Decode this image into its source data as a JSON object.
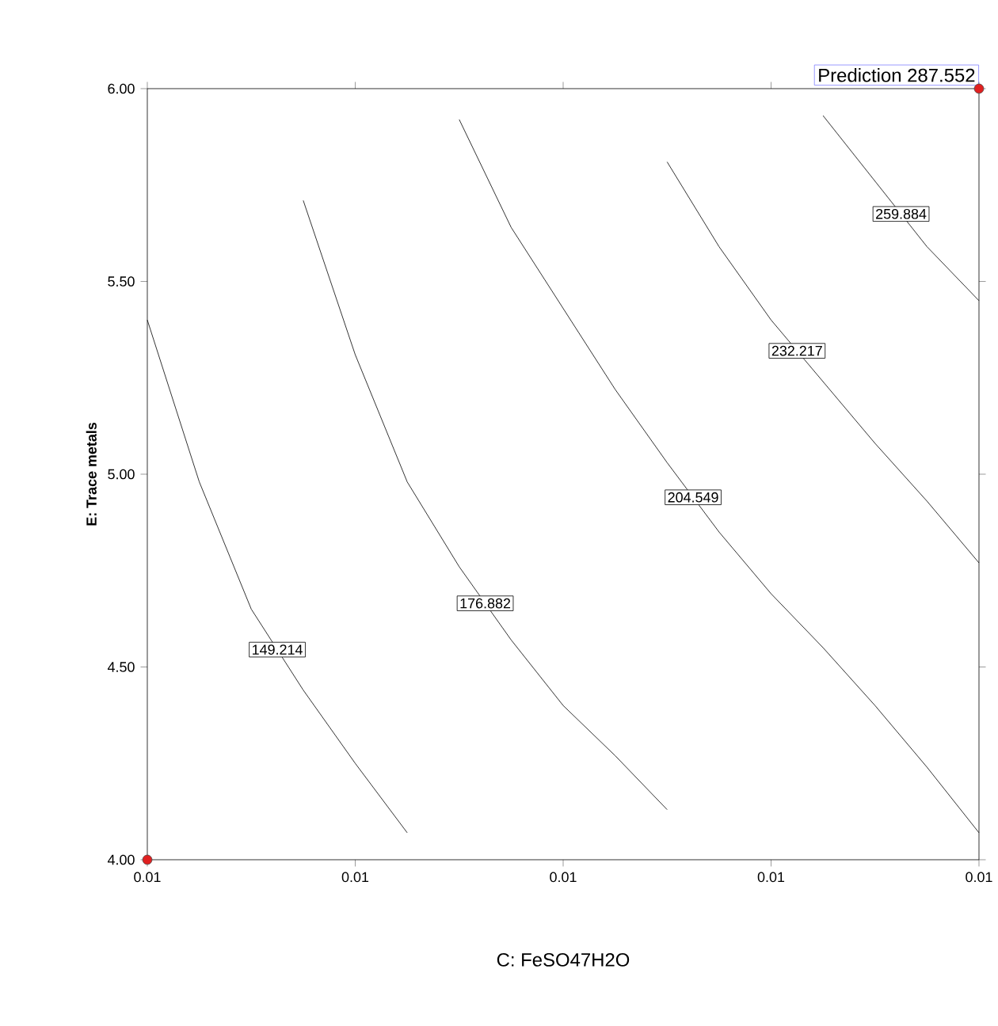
{
  "chart_data": {
    "type": "line",
    "xlabel": "C: FeSO47H2O",
    "ylabel": "E: Trace metals",
    "categories": [
      "0.01",
      null,
      null,
      null,
      "0.01",
      null,
      null,
      null,
      "0.01",
      null,
      null,
      null,
      "0.01",
      null,
      null,
      null,
      "0.01"
    ],
    "ylim": [
      4,
      6
    ],
    "yticks": [
      {
        "value": 4,
        "label": "4.00"
      },
      {
        "value": 4.5,
        "label": "4.50"
      },
      {
        "value": 5,
        "label": "5.00"
      },
      {
        "value": 5.5,
        "label": "5.50"
      },
      {
        "value": 6,
        "label": "6.00"
      }
    ],
    "series": [
      {
        "name": "149.214",
        "color": "#000000",
        "values": [
          5.4,
          4.98,
          4.65,
          4.44,
          4.25,
          4.07,
          null,
          null,
          null,
          null,
          null,
          null,
          null,
          null,
          null,
          null,
          null
        ]
      },
      {
        "name": "176.882",
        "color": "#000000",
        "values": [
          null,
          null,
          null,
          5.71,
          5.31,
          4.98,
          4.76,
          4.57,
          4.4,
          4.27,
          4.13,
          null,
          null,
          null,
          null,
          null,
          null
        ]
      },
      {
        "name": "204.549",
        "color": "#000000",
        "values": [
          null,
          null,
          null,
          null,
          null,
          null,
          5.92,
          5.64,
          5.43,
          5.22,
          5.03,
          4.85,
          4.69,
          4.55,
          4.4,
          4.24,
          4.07
        ]
      },
      {
        "name": "232.217",
        "color": "#000000",
        "values": [
          null,
          null,
          null,
          null,
          null,
          null,
          null,
          null,
          null,
          null,
          5.81,
          5.59,
          5.4,
          5.24,
          5.08,
          4.93,
          4.77
        ]
      },
      {
        "name": "259.884",
        "color": "#000000",
        "values": [
          null,
          null,
          null,
          null,
          null,
          null,
          null,
          null,
          null,
          null,
          null,
          null,
          null,
          5.93,
          5.76,
          5.59,
          5.45
        ]
      },
      {
        "type": "scatter",
        "color": "#e02020",
        "values": [
          4.0,
          null,
          null,
          null,
          null,
          null,
          null,
          null,
          null,
          null,
          null,
          null,
          null,
          null,
          null,
          null,
          6.0
        ]
      }
    ],
    "annotations": [
      "Prediction    287.552"
    ],
    "legend": false,
    "line_style": "solid"
  }
}
